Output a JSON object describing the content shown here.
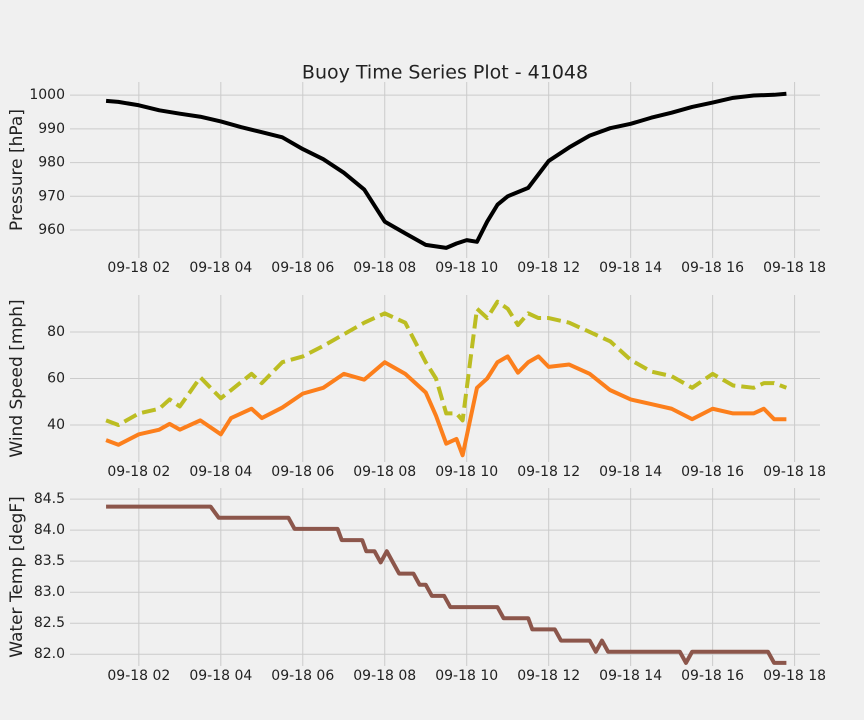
{
  "chart_data": [
    {
      "type": "line",
      "title": "Buoy Time Series Plot - 41048",
      "ylabel": "Pressure [hPa]",
      "x": [
        1.2,
        1.5,
        2,
        2.5,
        3,
        3.5,
        4,
        4.5,
        5,
        5.5,
        6,
        6.5,
        7,
        7.5,
        8,
        8.5,
        9,
        9.5,
        9.75,
        10,
        10.25,
        10.5,
        10.75,
        11,
        11.5,
        12,
        12.5,
        13,
        13.5,
        14,
        14.5,
        15,
        15.5,
        16,
        16.5,
        17,
        17.5,
        17.8
      ],
      "series": [
        {
          "color": "#000000",
          "values": [
            998.3,
            998.0,
            997.0,
            995.5,
            994.5,
            993.6,
            992.2,
            990.5,
            989.0,
            987.5,
            984.0,
            981.0,
            977.0,
            972.0,
            962.5,
            959.0,
            955.6,
            954.7,
            956.0,
            957.0,
            956.5,
            962.5,
            967.5,
            970.0,
            972.5,
            980.5,
            984.5,
            988.0,
            990.2,
            991.5,
            993.3,
            994.8,
            996.5,
            997.8,
            999.2,
            999.9,
            1000.1,
            1000.4
          ]
        }
      ],
      "xlim": [
        0.32,
        18.62
      ],
      "xticks": [
        {
          "value": 2,
          "label": "09-18 02"
        },
        {
          "value": 4,
          "label": "09-18 04"
        },
        {
          "value": 6,
          "label": "09-18 06"
        },
        {
          "value": 8,
          "label": "09-18 08"
        },
        {
          "value": 10,
          "label": "09-18 10"
        },
        {
          "value": 12,
          "label": "09-18 12"
        },
        {
          "value": 14,
          "label": "09-18 14"
        },
        {
          "value": 16,
          "label": "09-18 16"
        },
        {
          "value": 18,
          "label": "09-18 18"
        }
      ],
      "ylim": [
        951.7,
        1003.9
      ],
      "yticks": [
        960,
        970,
        980,
        990,
        1000
      ],
      "grid": true
    },
    {
      "type": "line",
      "ylabel": "Wind Speed [mph]",
      "x": [
        1.2,
        1.5,
        2,
        2.5,
        2.75,
        3,
        3.5,
        4,
        4.25,
        4.75,
        5,
        5.5,
        6,
        6.5,
        7,
        7.5,
        8,
        8.5,
        9,
        9.25,
        9.5,
        9.75,
        9.9,
        10.25,
        10.5,
        10.75,
        11,
        11.25,
        11.5,
        11.75,
        12,
        12.5,
        13,
        13.5,
        14,
        14.5,
        15,
        15.5,
        16,
        16.5,
        17,
        17.25,
        17.5,
        17.8
      ],
      "series": [
        {
          "color": "#bcbd22",
          "linestyle": "dashed",
          "values": [
            42,
            40,
            45,
            47,
            51,
            48,
            60.5,
            51.5,
            55,
            62,
            58,
            67,
            69.5,
            74,
            79,
            84,
            88,
            84,
            67,
            60,
            45,
            45,
            42,
            90,
            86,
            93,
            90,
            83,
            88,
            86,
            86,
            84,
            80,
            76,
            68,
            63,
            61,
            56,
            62,
            57,
            56,
            58,
            58,
            56
          ]
        },
        {
          "color": "#fc7f1c",
          "values": [
            33.5,
            31.5,
            36,
            38,
            40.5,
            38,
            42,
            36,
            43,
            47,
            43,
            47.5,
            53.5,
            56,
            62,
            59.5,
            67,
            62,
            54,
            44,
            32,
            34,
            27,
            56,
            60,
            67,
            69.5,
            62.5,
            67,
            69.5,
            65,
            66,
            62,
            55,
            51,
            49,
            47,
            42.5,
            47,
            45,
            45,
            47,
            42.5,
            42.5
          ]
        }
      ],
      "xlim": [
        0.32,
        18.62
      ],
      "xticks": [
        {
          "value": 2,
          "label": "09-18 02"
        },
        {
          "value": 4,
          "label": "09-18 04"
        },
        {
          "value": 6,
          "label": "09-18 06"
        },
        {
          "value": 8,
          "label": "09-18 08"
        },
        {
          "value": 10,
          "label": "09-18 10"
        },
        {
          "value": 12,
          "label": "09-18 12"
        },
        {
          "value": 14,
          "label": "09-18 14"
        },
        {
          "value": 16,
          "label": "09-18 16"
        },
        {
          "value": 18,
          "label": "09-18 18"
        }
      ],
      "ylim": [
        24.1,
        95.9
      ],
      "yticks": [
        40,
        60,
        80
      ],
      "grid": true
    },
    {
      "type": "line",
      "ylabel": "Water Temp [degF]",
      "x": [
        1.2,
        3.75,
        3.95,
        5.65,
        5.8,
        6.85,
        6.95,
        7.45,
        7.55,
        7.75,
        7.9,
        8.05,
        8.2,
        8.35,
        8.7,
        8.85,
        9.0,
        9.15,
        9.45,
        9.6,
        10.75,
        10.9,
        11.5,
        11.6,
        12.15,
        12.3,
        13.0,
        13.15,
        13.3,
        13.45,
        15.2,
        15.35,
        15.5,
        17.35,
        17.5,
        17.8
      ],
      "series": [
        {
          "color": "#8c564b",
          "values": [
            84.38,
            84.38,
            84.2,
            84.2,
            84.02,
            84.02,
            83.84,
            83.84,
            83.66,
            83.66,
            83.48,
            83.66,
            83.48,
            83.3,
            83.3,
            83.12,
            83.12,
            82.94,
            82.94,
            82.76,
            82.76,
            82.58,
            82.58,
            82.4,
            82.4,
            82.22,
            82.22,
            82.04,
            82.22,
            82.04,
            82.04,
            81.86,
            82.04,
            82.04,
            81.86,
            81.86
          ]
        }
      ],
      "xlim": [
        0.32,
        18.62
      ],
      "xticks": [
        {
          "value": 2,
          "label": "09-18 02"
        },
        {
          "value": 4,
          "label": "09-18 04"
        },
        {
          "value": 6,
          "label": "09-18 06"
        },
        {
          "value": 8,
          "label": "09-18 08"
        },
        {
          "value": 10,
          "label": "09-18 10"
        },
        {
          "value": 12,
          "label": "09-18 12"
        },
        {
          "value": 14,
          "label": "09-18 14"
        },
        {
          "value": 16,
          "label": "09-18 16"
        },
        {
          "value": 18,
          "label": "09-18 18"
        }
      ],
      "ylim": [
        81.81,
        84.68
      ],
      "yticks": [
        {
          "value": 82,
          "label": "82.0"
        },
        82.5,
        {
          "value": 83,
          "label": "83.0"
        },
        83.5,
        {
          "value": 84,
          "label": "84.0"
        },
        84.5
      ],
      "grid": true
    }
  ]
}
